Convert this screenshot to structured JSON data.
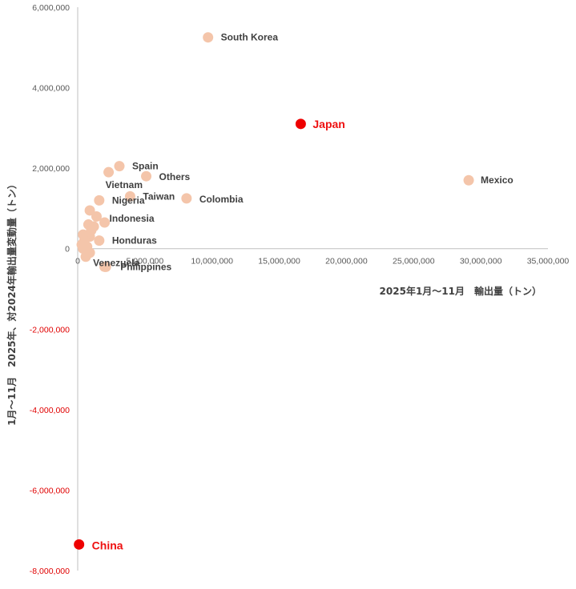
{
  "chart_data": {
    "type": "scatter",
    "title": "",
    "xlabel": "2025年1月～11月　輸出量（トン）",
    "ylabel": "1月～11月　2025年、対2024年輸出量変動量（トン）",
    "xlim": [
      0,
      35000000
    ],
    "ylim": [
      -8000000,
      6000000
    ],
    "x_ticks": [
      "0",
      "5,000,000",
      "10,000,000",
      "15,000,000",
      "20,000,000",
      "25,000,000",
      "30,000,000",
      "35,000,000"
    ],
    "y_ticks": [
      "6,000,000",
      "4,000,000",
      "2,000,000",
      "0",
      "-2,000,000",
      "-4,000,000",
      "-6,000,000",
      "-8,000,000"
    ],
    "colors": {
      "normal": "#f4c5aa",
      "highlight": "#ee0000",
      "axis": "#bfbfbf",
      "negative_tick": "#e00000"
    },
    "points": [
      {
        "label": "South Korea",
        "x": 9700000,
        "y": 5250000,
        "highlight": false
      },
      {
        "label": "Japan",
        "x": 16600000,
        "y": 3100000,
        "highlight": true
      },
      {
        "label": "Mexico",
        "x": 29100000,
        "y": 1700000,
        "highlight": false
      },
      {
        "label": "Spain",
        "x": 3100000,
        "y": 2050000,
        "highlight": false
      },
      {
        "label": "Others",
        "x": 5100000,
        "y": 1800000,
        "highlight": false
      },
      {
        "label": "Vietnam",
        "x": 2300000,
        "y": 1900000,
        "highlight": false
      },
      {
        "label": "Nigeria",
        "x": 1600000,
        "y": 1200000,
        "highlight": false
      },
      {
        "label": "Taiwan",
        "x": 3900000,
        "y": 1300000,
        "highlight": false
      },
      {
        "label": "Colombia",
        "x": 8100000,
        "y": 1250000,
        "highlight": false
      },
      {
        "label": "Indonesia",
        "x": 2000000,
        "y": 650000,
        "highlight": false
      },
      {
        "label": "Honduras",
        "x": 1600000,
        "y": 200000,
        "highlight": false
      },
      {
        "label": "Venezuela",
        "x": 900000,
        "y": -100000,
        "highlight": false
      },
      {
        "label": "Philippines",
        "x": 2100000,
        "y": -450000,
        "highlight": false
      },
      {
        "label": "China",
        "x": 100000,
        "y": -7350000,
        "highlight": true
      },
      {
        "label": "",
        "x": 900000,
        "y": 950000,
        "highlight": false
      },
      {
        "label": "",
        "x": 1400000,
        "y": 800000,
        "highlight": false
      },
      {
        "label": "",
        "x": 800000,
        "y": 600000,
        "highlight": false
      },
      {
        "label": "",
        "x": 1200000,
        "y": 550000,
        "highlight": false
      },
      {
        "label": "",
        "x": 1000000,
        "y": 450000,
        "highlight": false
      },
      {
        "label": "",
        "x": 400000,
        "y": 350000,
        "highlight": false
      },
      {
        "label": "",
        "x": 900000,
        "y": 300000,
        "highlight": false
      },
      {
        "label": "",
        "x": 500000,
        "y": 200000,
        "highlight": false
      },
      {
        "label": "",
        "x": 300000,
        "y": 100000,
        "highlight": false
      },
      {
        "label": "",
        "x": 700000,
        "y": 50000,
        "highlight": false
      },
      {
        "label": "",
        "x": 400000,
        "y": 0,
        "highlight": false
      },
      {
        "label": "",
        "x": 600000,
        "y": -200000,
        "highlight": false
      },
      {
        "label": "",
        "x": 2000000,
        "y": -450000,
        "highlight": false
      }
    ]
  }
}
